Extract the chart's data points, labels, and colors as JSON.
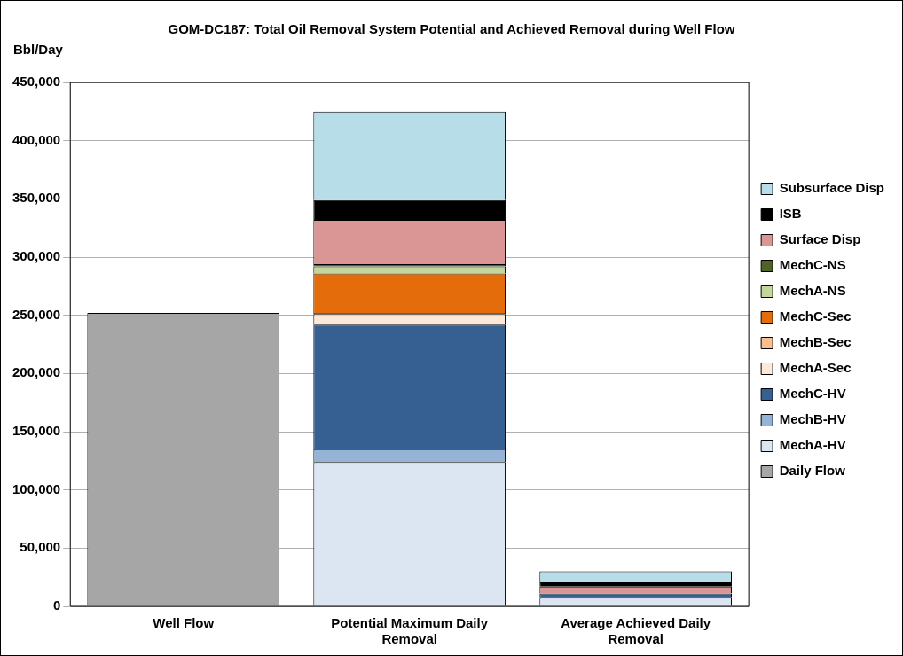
{
  "chart_data": {
    "type": "bar",
    "title": "GOM-DC187: Total Oil Removal System Potential and Achieved Removal during Well Flow",
    "ylabel": "Bbl/Day",
    "categories": [
      "Well Flow",
      "Potential Maximum Daily Removal",
      "Average Achieved Daily Removal"
    ],
    "stacked": true,
    "ylim": [
      0,
      450000
    ],
    "yticks": [
      0,
      {
        "value": 50000,
        "label": "50,000"
      },
      {
        "value": 100000,
        "label": "100,000"
      },
      {
        "value": 150000,
        "label": "150,000"
      },
      {
        "value": 200000,
        "label": "200,000"
      },
      {
        "value": 250000,
        "label": "250,000"
      },
      {
        "value": 300000,
        "label": "300,000"
      },
      {
        "value": 350000,
        "label": "350,000"
      },
      {
        "value": 400000,
        "label": "400,000"
      },
      {
        "value": 450000,
        "label": "450,000"
      }
    ],
    "grid": "y",
    "legend": "right",
    "series": [
      {
        "name": "Daily Flow",
        "color": "#a6a6a6",
        "values": [
          252000,
          null,
          null
        ]
      },
      {
        "name": "MechA-HV",
        "color": "#dce6f2",
        "values": [
          null,
          124000,
          7500
        ]
      },
      {
        "name": "MechB-HV",
        "color": "#95b3d7",
        "values": [
          null,
          11000,
          null
        ]
      },
      {
        "name": "MechC-HV",
        "color": "#366092",
        "values": [
          null,
          107000,
          3500
        ]
      },
      {
        "name": "MechA-Sec",
        "color": "#fde9d9",
        "values": [
          null,
          9000,
          null
        ]
      },
      {
        "name": "MechB-Sec",
        "color": "#fabf8f",
        "values": [
          null,
          1000,
          null
        ]
      },
      {
        "name": "MechC-Sec",
        "color": "#e46c0a",
        "values": [
          null,
          34000,
          null
        ]
      },
      {
        "name": "MechA-NS",
        "color": "#c4d79b",
        "values": [
          null,
          6000,
          null
        ]
      },
      {
        "name": "MechC-NS",
        "color": "#4f6228",
        "values": [
          null,
          2000,
          null
        ]
      },
      {
        "name": "Surface Disp",
        "color": "#da9694",
        "values": [
          null,
          38000,
          6000
        ]
      },
      {
        "name": "ISB",
        "color": "#000000",
        "values": [
          null,
          17000,
          3500
        ]
      },
      {
        "name": "Subsurface Disp",
        "color": "#b7dee8",
        "values": [
          null,
          76000,
          9500
        ]
      }
    ]
  }
}
